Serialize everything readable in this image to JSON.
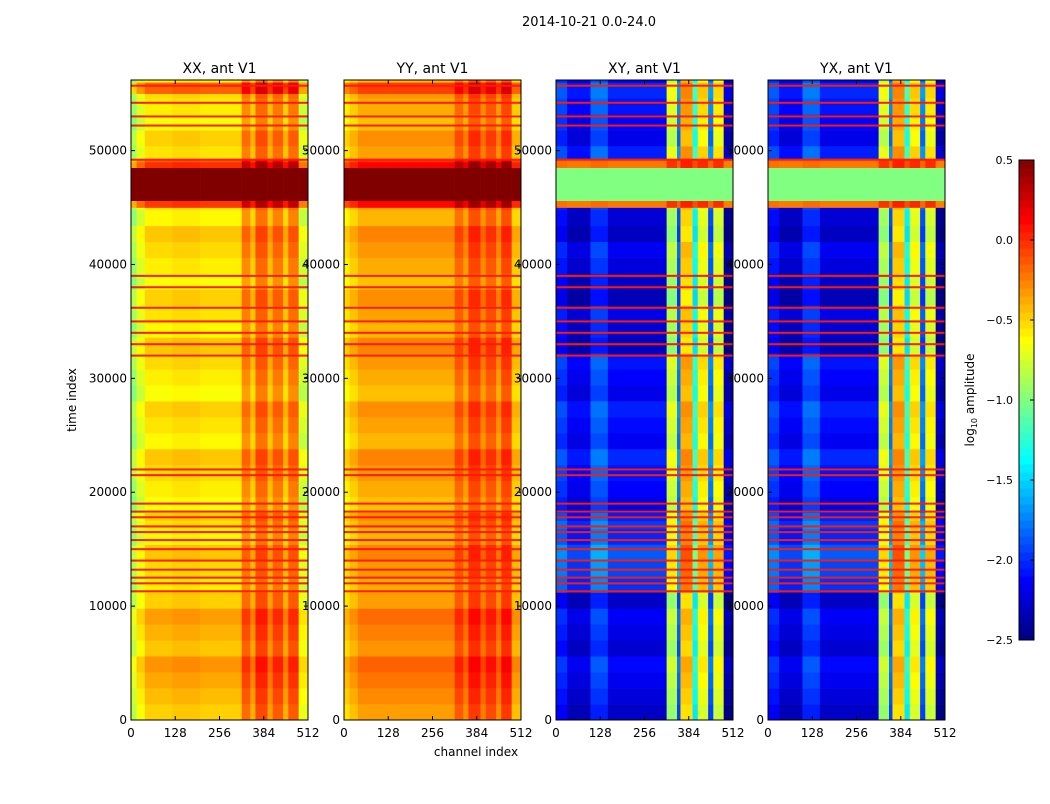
{
  "chart_data": {
    "type": "heatmap",
    "suptitle": "2014-10-21 0.0-24.0",
    "xlabel": "channel index",
    "ylabel": "time index",
    "xlim": [
      0,
      512
    ],
    "ylim": [
      0,
      56200
    ],
    "xticks": [
      0,
      128,
      256,
      384,
      512
    ],
    "xtick_labels": [
      "0",
      "128",
      "256",
      "384",
      "512"
    ],
    "yticks": [
      0,
      10000,
      20000,
      30000,
      40000,
      50000
    ],
    "ytick_labels": [
      "0",
      "10000",
      "20000",
      "30000",
      "40000",
      "50000"
    ],
    "colorbar": {
      "label_main": "log",
      "label_sub": "10",
      "label_rest": " amplitude",
      "range": [
        -2.5,
        0.5
      ],
      "ticks": [
        0.5,
        0.0,
        -0.5,
        -1.0,
        -1.5,
        -2.0,
        -2.5
      ],
      "tick_labels": [
        "0.5",
        "0.0",
        "−0.5",
        "−1.0",
        "−1.5",
        "−2.0",
        "−2.5"
      ],
      "colormap": "jet"
    },
    "panels": [
      {
        "title": "XX, ant V1",
        "kind": "auto",
        "channel_profile": [
          [
            0,
            16,
            -0.9
          ],
          [
            16,
            40,
            -0.7
          ],
          [
            40,
            120,
            -0.55
          ],
          [
            120,
            200,
            -0.52
          ],
          [
            200,
            320,
            -0.55
          ],
          [
            320,
            345,
            -0.25
          ],
          [
            345,
            360,
            -0.45
          ],
          [
            360,
            395,
            -0.15
          ],
          [
            395,
            410,
            -0.4
          ],
          [
            410,
            440,
            -0.2
          ],
          [
            440,
            455,
            -0.45
          ],
          [
            455,
            485,
            -0.2
          ],
          [
            485,
            512,
            -0.75
          ]
        ],
        "flag_value": 0.5,
        "time_offsets": [
          [
            0,
            11200,
            0.15
          ],
          [
            11200,
            17500,
            0.0
          ],
          [
            17500,
            45000,
            0.0
          ],
          [
            45000,
            45600,
            0.45
          ],
          [
            48500,
            49300,
            0.45
          ],
          [
            49300,
            56200,
            0.0
          ],
          [
            55000,
            56000,
            0.3
          ]
        ]
      },
      {
        "title": "YY, ant V1",
        "kind": "auto",
        "channel_profile": [
          [
            0,
            16,
            -0.55
          ],
          [
            16,
            40,
            -0.45
          ],
          [
            40,
            320,
            -0.35
          ],
          [
            320,
            345,
            -0.15
          ],
          [
            345,
            360,
            -0.3
          ],
          [
            360,
            395,
            -0.05
          ],
          [
            395,
            410,
            -0.25
          ],
          [
            410,
            440,
            -0.1
          ],
          [
            440,
            455,
            -0.3
          ],
          [
            455,
            485,
            -0.05
          ],
          [
            485,
            512,
            -0.45
          ]
        ],
        "flag_value": 0.5,
        "time_offsets": [
          [
            0,
            11200,
            0.1
          ],
          [
            11200,
            17500,
            0.0
          ],
          [
            17500,
            45000,
            0.0
          ],
          [
            45000,
            45600,
            0.4
          ],
          [
            48500,
            49300,
            0.4
          ],
          [
            49300,
            56200,
            0.0
          ],
          [
            55000,
            56000,
            0.2
          ]
        ]
      },
      {
        "title": "XY, ant V1",
        "kind": "cross",
        "channel_profile": [
          [
            0,
            32,
            -2.0
          ],
          [
            32,
            100,
            -2.2
          ],
          [
            100,
            150,
            -1.9
          ],
          [
            150,
            320,
            -2.15
          ],
          [
            320,
            350,
            -0.8
          ],
          [
            350,
            360,
            -1.8
          ],
          [
            360,
            395,
            -0.4
          ],
          [
            395,
            410,
            -1.3
          ],
          [
            410,
            440,
            -0.6
          ],
          [
            440,
            455,
            -1.8
          ],
          [
            455,
            485,
            -0.65
          ],
          [
            485,
            512,
            -2.35
          ]
        ],
        "flag_value": -1.0,
        "time_offsets": [
          [
            0,
            11200,
            -0.05
          ],
          [
            11200,
            17500,
            0.2
          ],
          [
            17500,
            32000,
            0.05
          ],
          [
            32000,
            45000,
            -0.1
          ],
          [
            45000,
            45600,
            1.9
          ],
          [
            48500,
            49300,
            1.9
          ],
          [
            49300,
            56200,
            0.05
          ]
        ]
      },
      {
        "title": "YX, ant V1",
        "kind": "cross",
        "channel_profile": [
          [
            0,
            32,
            -2.0
          ],
          [
            32,
            100,
            -2.2
          ],
          [
            100,
            150,
            -1.9
          ],
          [
            150,
            320,
            -2.15
          ],
          [
            320,
            350,
            -0.8
          ],
          [
            350,
            360,
            -1.8
          ],
          [
            360,
            395,
            -0.4
          ],
          [
            395,
            410,
            -1.3
          ],
          [
            410,
            440,
            -0.6
          ],
          [
            440,
            455,
            -1.8
          ],
          [
            455,
            485,
            -0.65
          ],
          [
            485,
            512,
            -2.35
          ]
        ],
        "flag_value": -1.0,
        "time_offsets": [
          [
            0,
            11200,
            -0.05
          ],
          [
            11200,
            17500,
            0.2
          ],
          [
            17500,
            32000,
            0.05
          ],
          [
            32000,
            45000,
            -0.1
          ],
          [
            45000,
            45600,
            1.9
          ],
          [
            48500,
            49300,
            1.9
          ],
          [
            49300,
            56200,
            0.05
          ]
        ]
      }
    ],
    "flagged_band": [
      45600,
      48500
    ],
    "hot_lines": [
      11300,
      12000,
      12500,
      13200,
      14000,
      15000,
      15800,
      16500,
      17000,
      17800,
      18300,
      19000,
      21500,
      22000,
      32000,
      33000,
      34000,
      35000,
      36200,
      38000,
      39000,
      49200,
      52200,
      53000,
      54200,
      55700
    ],
    "hot_line_value": 0.05
  }
}
